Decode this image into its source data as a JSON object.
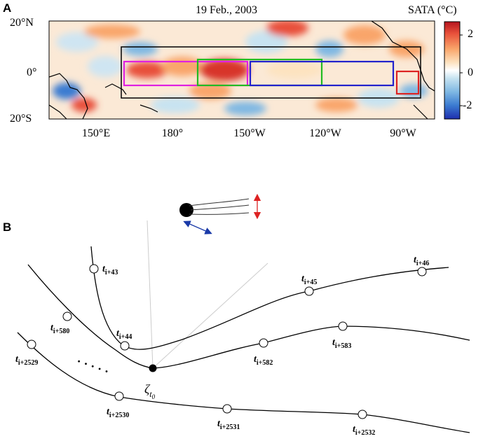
{
  "panel_a": {
    "label": "A",
    "title": "19 Feb., 2003",
    "colorbar_title": "SATA (°C)",
    "colorbar_ticks": [
      "2",
      "0",
      "-2"
    ],
    "y_ticks": [
      "20°N",
      "0°",
      "20°S"
    ],
    "x_ticks": [
      "150°E",
      "180°",
      "150°W",
      "120°W",
      "90°W"
    ],
    "box_colors": {
      "outer": "#000000",
      "magenta": "#e020e0",
      "green": "#22bb22",
      "blue": "#2222cc",
      "red": "#dd2222"
    },
    "colormap": [
      "#1f2fae",
      "#3b7bd1",
      "#7fb8e3",
      "#c7e3f1",
      "#ffffff",
      "#fde3c0",
      "#f9a56a",
      "#e8503a",
      "#b5141e"
    ]
  },
  "panel_b": {
    "label": "B",
    "dots": "· · · · ·",
    "zeta_base": "ζ",
    "zeta_sub": "t",
    "zeta_subsub": "0",
    "arrow_colors": {
      "horizontal": "#1a3aa8",
      "vertical": "#dd2222"
    },
    "nodes": [
      {
        "id": "n43",
        "base": "t",
        "sub": "i+43"
      },
      {
        "id": "n44",
        "base": "t",
        "sub": "i+44"
      },
      {
        "id": "n45",
        "base": "t",
        "sub": "i+45"
      },
      {
        "id": "n46",
        "base": "t",
        "sub": "i+46"
      },
      {
        "id": "n580",
        "base": "t",
        "sub": "i+580"
      },
      {
        "id": "n582",
        "base": "t",
        "sub": "i+582"
      },
      {
        "id": "n583",
        "base": "t",
        "sub": "i+583"
      },
      {
        "id": "n2529",
        "base": "t",
        "sub": "i+2529"
      },
      {
        "id": "n2530",
        "base": "t",
        "sub": "i+2530"
      },
      {
        "id": "n2531",
        "base": "t",
        "sub": "i+2531"
      },
      {
        "id": "n2532",
        "base": "t",
        "sub": "i+2532"
      }
    ]
  }
}
